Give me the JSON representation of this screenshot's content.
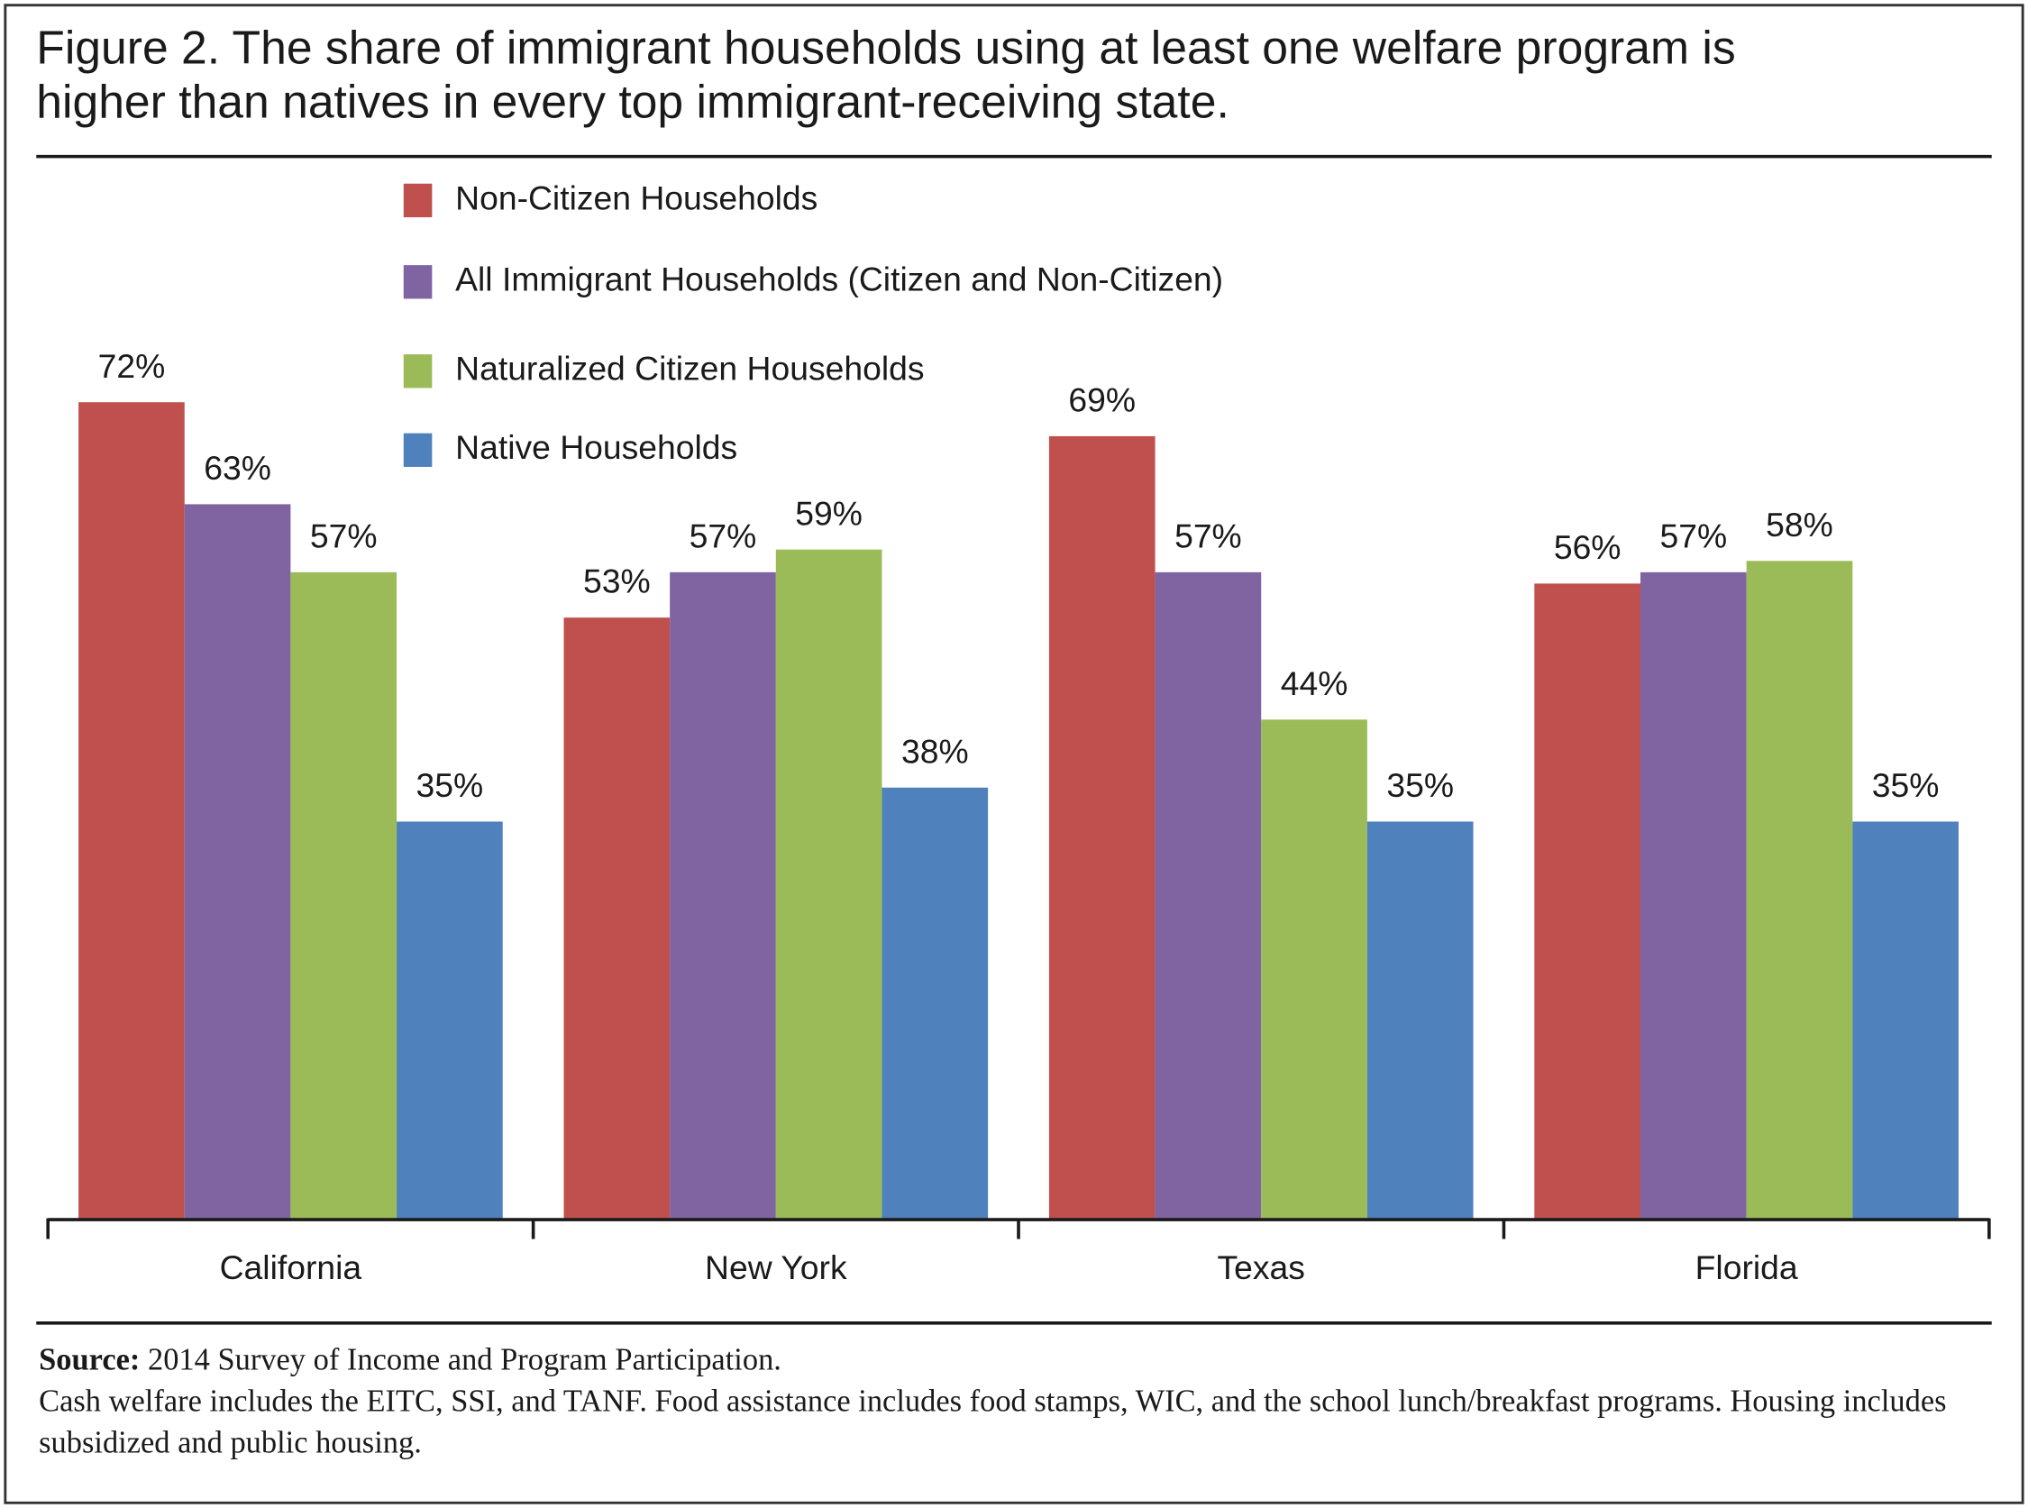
{
  "chart_data": {
    "type": "bar",
    "title": "Figure 2. The share of immigrant households using at least one welfare program is higher than natives in every top immigrant-receiving state.",
    "categories": [
      "California",
      "New York",
      "Texas",
      "Florida"
    ],
    "series": [
      {
        "name": "Non-Citizen Households",
        "color": "#c0504d",
        "values": [
          72,
          53,
          69,
          56
        ],
        "value_labels": [
          "72%",
          "53%",
          "69%",
          "56%"
        ]
      },
      {
        "name": "All Immigrant Households (Citizen and Non-Citizen)",
        "color": "#8064a2",
        "values": [
          63,
          57,
          57,
          57
        ],
        "value_labels": [
          "63%",
          "57%",
          "57%",
          "57%"
        ]
      },
      {
        "name": "Naturalized Citizen Households",
        "color": "#9bbb59",
        "values": [
          57,
          59,
          44,
          58
        ],
        "value_labels": [
          "57%",
          "59%",
          "44%",
          "58%"
        ]
      },
      {
        "name": "Native Households",
        "color": "#4f81bd",
        "values": [
          35,
          38,
          35,
          35
        ],
        "value_labels": [
          "35%",
          "38%",
          "35%",
          "35%"
        ]
      }
    ],
    "source_label": "Source:",
    "source": "2014 Survey of Income and Program Participation.",
    "note": "Cash welfare includes the EITC, SSI, and TANF. Food assistance includes food stamps, WIC, and the school lunch/breakfast programs. Housing includes subsidized and public housing."
  }
}
